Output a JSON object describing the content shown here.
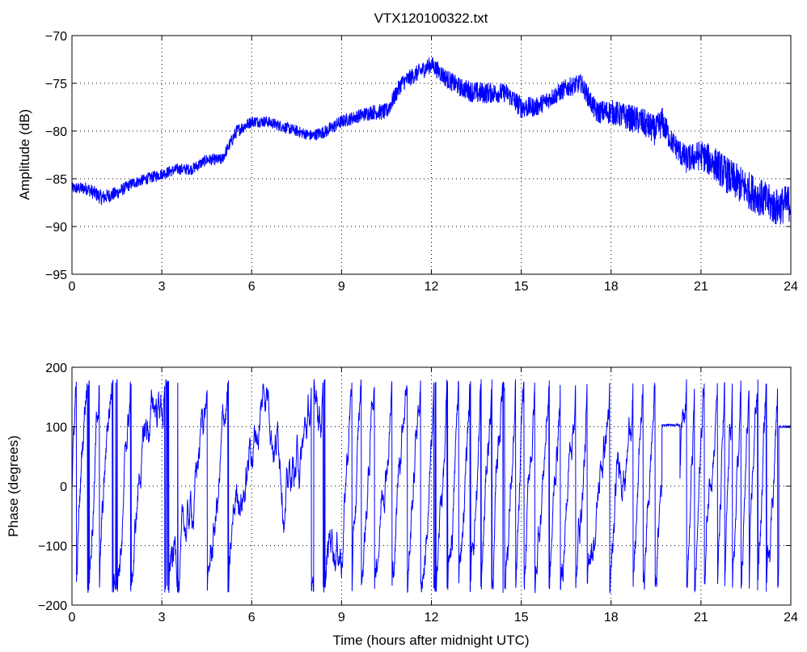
{
  "chart_data": [
    {
      "type": "line",
      "title": "VTX120100322.txt",
      "xlabel": "",
      "ylabel": "Amplitude (dB)",
      "xlim": [
        0,
        24
      ],
      "ylim": [
        -95,
        -70
      ],
      "xticks": [
        0,
        3,
        6,
        9,
        12,
        15,
        18,
        21,
        24
      ],
      "xtick_labels": [
        "0",
        "3",
        "6",
        "9",
        "12",
        "15",
        "18",
        "21",
        "24"
      ],
      "yticks": [
        -70,
        -75,
        -80,
        -85,
        -90,
        -95
      ],
      "ytick_labels": [
        "−70",
        "−75",
        "−80",
        "−85",
        "−90",
        "−95"
      ],
      "grid": true,
      "line_color": "#0000ff",
      "series": [
        {
          "x": [
            0,
            0.5,
            1.0,
            1.5,
            2.0,
            2.5,
            3.0,
            3.5,
            4.0,
            4.5,
            5.0,
            5.5,
            6.0,
            6.5,
            7.0,
            7.5,
            8.0,
            8.5,
            9.0,
            9.5,
            10.0,
            10.5,
            11.0,
            11.5,
            12.0,
            12.5,
            13.0,
            13.5,
            14.0,
            14.5,
            15.0,
            15.5,
            16.0,
            16.5,
            17.0,
            17.5,
            18.0,
            18.5,
            19.0,
            19.5,
            19.7,
            20.0,
            20.5,
            21.0,
            21.5,
            22.0,
            22.5,
            23.0,
            23.5,
            24.0
          ],
          "y": [
            -86,
            -86,
            -87,
            -86.5,
            -85.5,
            -85,
            -84.5,
            -84,
            -84,
            -83,
            -83,
            -80,
            -79,
            -79,
            -79.5,
            -80,
            -80.5,
            -80,
            -79,
            -78.5,
            -78,
            -78,
            -75,
            -74,
            -73,
            -74.5,
            -75.5,
            -76,
            -76,
            -76,
            -77.5,
            -77.5,
            -76.5,
            -75.5,
            -75,
            -78,
            -78,
            -78.5,
            -79,
            -80,
            -79,
            -81,
            -83,
            -82.5,
            -83.5,
            -85,
            -86,
            -87,
            -88,
            -87.5
          ],
          "noise": [
            0.6,
            0.7,
            0.8,
            0.7,
            0.6,
            0.6,
            0.6,
            0.6,
            0.6,
            0.6,
            0.6,
            0.7,
            0.6,
            0.6,
            0.6,
            0.6,
            0.6,
            0.7,
            0.7,
            0.7,
            0.8,
            0.9,
            0.9,
            0.9,
            0.9,
            1.0,
            1.0,
            1.2,
            1.1,
            1.0,
            1.2,
            1.0,
            1.0,
            1.0,
            1.0,
            1.2,
            1.3,
            1.4,
            1.5,
            1.6,
            1.6,
            1.2,
            1.5,
            1.6,
            1.8,
            2.0,
            2.0,
            2.0,
            2.0,
            2.0
          ]
        }
      ]
    },
    {
      "type": "line",
      "title": "",
      "xlabel": "Time (hours after midnight UTC)",
      "ylabel": "Phase (degrees)",
      "xlim": [
        0,
        24
      ],
      "ylim": [
        -200,
        200
      ],
      "xticks": [
        0,
        3,
        6,
        9,
        12,
        15,
        18,
        21,
        24
      ],
      "xtick_labels": [
        "0",
        "3",
        "6",
        "9",
        "12",
        "15",
        "18",
        "21",
        "24"
      ],
      "yticks": [
        200,
        100,
        0,
        -100,
        -200
      ],
      "ytick_labels": [
        "200",
        "100",
        "0",
        "−100",
        "−200"
      ],
      "grid": true,
      "line_color": "#0000ff",
      "wrap_range": [
        -180,
        180
      ],
      "series": [
        {
          "segments": [
            {
              "x0": 0.0,
              "x1": 0.95,
              "rate": 1100
            },
            {
              "x0": 0.95,
              "x1": 2.3,
              "rate": 700
            },
            {
              "x0": 2.3,
              "x1": 3.3,
              "rate": 120
            },
            {
              "x0": 3.3,
              "x1": 4.0,
              "rate": 60
            },
            {
              "x0": 4.0,
              "x1": 5.6,
              "rate": 400
            },
            {
              "x0": 5.6,
              "x1": 6.5,
              "rate": 300
            },
            {
              "x0": 6.5,
              "x1": 7.5,
              "rate": 90
            },
            {
              "x0": 7.5,
              "x1": 8.3,
              "rate": 80
            },
            {
              "x0": 8.3,
              "x1": 9.0,
              "rate": 250
            },
            {
              "x0": 9.0,
              "x1": 11.5,
              "rate": 900
            },
            {
              "x0": 11.5,
              "x1": 12.7,
              "rate": 700
            },
            {
              "x0": 12.7,
              "x1": 14.2,
              "rate": 1000
            },
            {
              "x0": 14.2,
              "x1": 16.3,
              "rate": 900
            },
            {
              "x0": 16.3,
              "x1": 17.3,
              "rate": 850
            },
            {
              "x0": 17.3,
              "x1": 18.6,
              "rate": 450
            },
            {
              "x0": 18.6,
              "x1": 19.7,
              "rate": 900
            },
            {
              "x0": 19.7,
              "x1": 20.3,
              "rate": 0,
              "hold": 103
            },
            {
              "x0": 20.3,
              "x1": 23.6,
              "rate": 1100
            },
            {
              "x0": 23.6,
              "x1": 24.0,
              "rate": 0,
              "hold": 100
            }
          ]
        }
      ]
    }
  ]
}
